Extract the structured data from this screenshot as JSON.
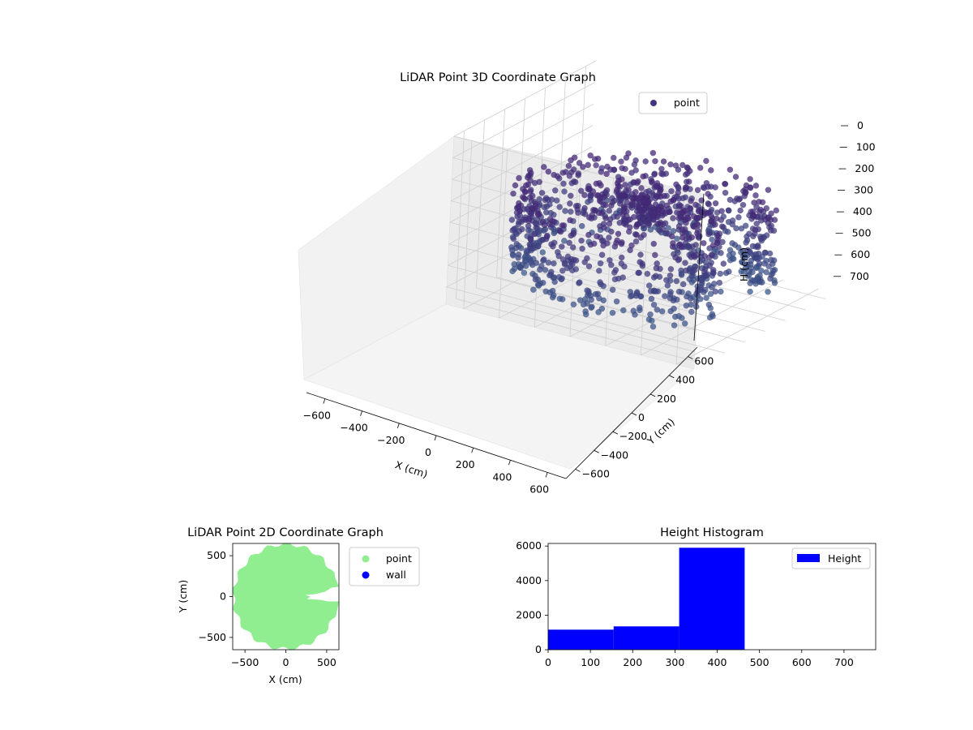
{
  "chart_data": [
    {
      "type": "scatter",
      "projection": "3d",
      "title": "LiDAR Point 3D Coordinate Graph",
      "xlabel": "X (cm)",
      "ylabel": "Y (cm)",
      "zlabel": "H (cm)",
      "xlim": [
        -700,
        700
      ],
      "ylim": [
        -700,
        700
      ],
      "zlim": [
        0,
        780
      ],
      "z_inverted": true,
      "xticks": [
        "−600",
        "−400",
        "−200",
        "0",
        "200",
        "400",
        "600"
      ],
      "yticks": [
        "−600",
        "−400",
        "−200",
        "0",
        "200",
        "400",
        "600"
      ],
      "zticks": [
        "0",
        "100",
        "200",
        "300",
        "400",
        "500",
        "600",
        "700"
      ],
      "grid": true,
      "legend": {
        "placement": "top-right",
        "entries": [
          {
            "label": "point",
            "color": "#46337e"
          }
        ]
      },
      "series": [
        {
          "name": "point",
          "description_shape": "ring of points around origin, radius ≈ 650, open toward +X",
          "radius": 650,
          "radius_spread": 120,
          "gap_angle_deg": [
            -15,
            20
          ],
          "z_range": [
            300,
            700
          ],
          "color": "#46337e"
        }
      ]
    },
    {
      "type": "scatter",
      "title": "LiDAR Point 2D Coordinate Graph",
      "xlabel": "X (cm)",
      "ylabel": "Y (cm)",
      "xlim": [
        -650,
        650
      ],
      "ylim": [
        -650,
        650
      ],
      "xticks": [
        "−500",
        "0",
        "500"
      ],
      "yticks": [
        "−500",
        "0",
        "500"
      ],
      "legend": {
        "placement": "outside-right",
        "entries": [
          {
            "label": "point",
            "color": "#90ee90"
          },
          {
            "label": "wall",
            "color": "#0000ff"
          }
        ]
      },
      "series": [
        {
          "name": "point",
          "shape": "filled disk radius ≈ 650 with notch at +X, Y≈0",
          "color": "#90ee90"
        }
      ]
    },
    {
      "type": "bar",
      "title": "Height Histogram",
      "xlim": [
        0,
        775
      ],
      "ylim": [
        0,
        6150
      ],
      "xticks": [
        "0",
        "100",
        "200",
        "300",
        "400",
        "500",
        "600",
        "700"
      ],
      "yticks": [
        "0",
        "2000",
        "4000",
        "6000"
      ],
      "legend": {
        "placement": "top-right",
        "entries": [
          {
            "label": "Height",
            "color": "#0000ff"
          }
        ]
      },
      "bins": [
        {
          "x0": 0,
          "x1": 155,
          "count": 1160
        },
        {
          "x0": 155,
          "x1": 310,
          "count": 1350
        },
        {
          "x0": 310,
          "x1": 465,
          "count": 5900
        },
        {
          "x0": 465,
          "x1": 620,
          "count": 0
        },
        {
          "x0": 620,
          "x1": 775,
          "count": 0
        }
      ],
      "color": "#0000ff"
    }
  ]
}
